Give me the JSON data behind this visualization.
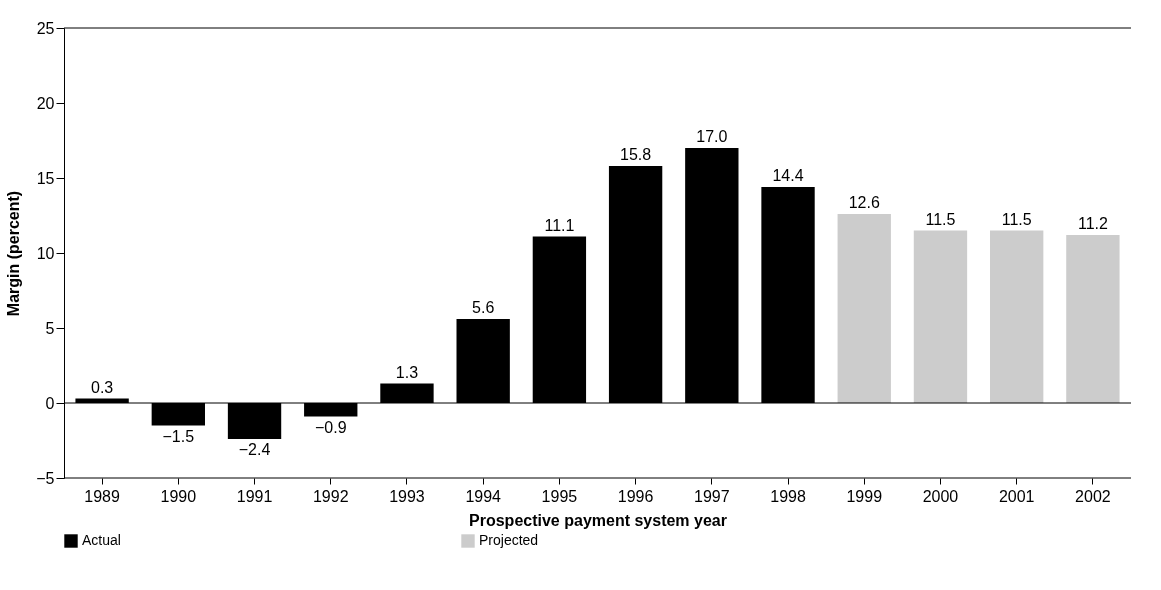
{
  "chart_data": {
    "type": "bar",
    "xlabel": "Prospective payment system year",
    "ylabel": "Margin (percent)",
    "categories": [
      "1989",
      "1990",
      "1991",
      "1992",
      "1993",
      "1994",
      "1995",
      "1996",
      "1997",
      "1998",
      "1999",
      "2000",
      "2001",
      "2002"
    ],
    "series": [
      {
        "name": "Actual",
        "color": "#000000",
        "values": [
          0.3,
          -1.5,
          -2.4,
          -0.9,
          1.3,
          5.6,
          11.1,
          15.8,
          17.0,
          14.4,
          null,
          null,
          null,
          null
        ],
        "value_labels": [
          "0.3",
          "−1.5",
          "−2.4",
          "−0.9",
          "1.3",
          "5.6",
          "11.1",
          "15.8",
          "17.0",
          "14.4",
          null,
          null,
          null,
          null
        ]
      },
      {
        "name": "Projected",
        "color": "#cccccc",
        "values": [
          null,
          null,
          null,
          null,
          null,
          null,
          null,
          null,
          null,
          null,
          12.6,
          11.5,
          11.5,
          11.2
        ],
        "value_labels": [
          null,
          null,
          null,
          null,
          null,
          null,
          null,
          null,
          null,
          null,
          "12.6",
          "11.5",
          "11.5",
          "11.2"
        ]
      }
    ],
    "ylim": [
      -5,
      25
    ],
    "yticks": [
      {
        "value": -5,
        "label": "−5"
      },
      0,
      5,
      10,
      15,
      20,
      25
    ],
    "ref_lines": [
      {
        "axis": "y",
        "value": 0
      }
    ],
    "grid": false,
    "legend": "bottom"
  }
}
